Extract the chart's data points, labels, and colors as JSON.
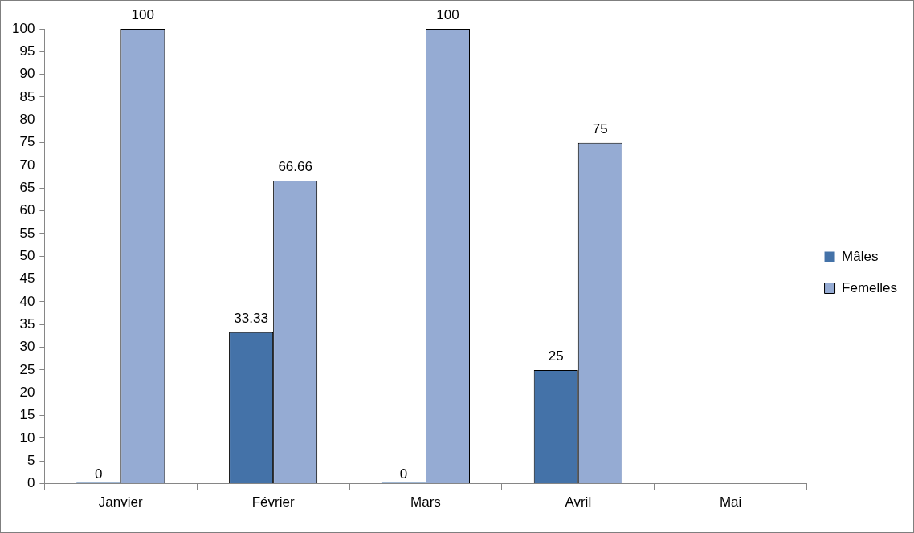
{
  "chart_data": {
    "type": "bar",
    "categories": [
      "Janvier",
      "Février",
      "Mars",
      "Avril",
      "Mai"
    ],
    "series": [
      {
        "name": "Mâles",
        "color": "#4472a8",
        "values": [
          0,
          33.33,
          0,
          25,
          null
        ]
      },
      {
        "name": "Femelles",
        "color": "#95abd3",
        "values": [
          100,
          66.66,
          100,
          75,
          null
        ]
      }
    ],
    "ylim": [
      0,
      100
    ],
    "yticks": [
      0,
      5,
      10,
      15,
      20,
      25,
      30,
      35,
      40,
      45,
      50,
      55,
      60,
      65,
      70,
      75,
      80,
      85,
      90,
      95,
      100
    ],
    "grid": false,
    "legend": "right",
    "data_labels": true
  }
}
